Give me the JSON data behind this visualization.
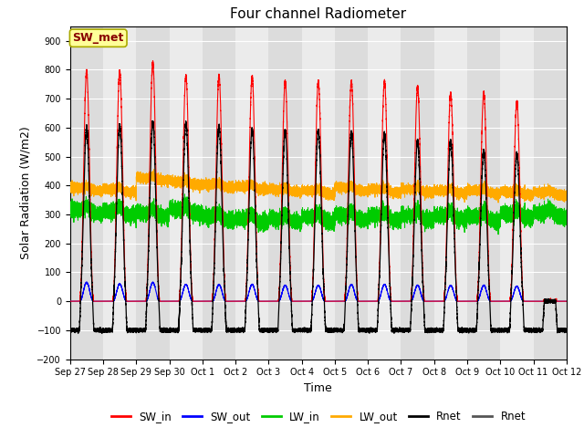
{
  "title": "Four channel Radiometer",
  "xlabel": "Time",
  "ylabel": "Solar Radiation (W/m2)",
  "ylim": [
    -200,
    950
  ],
  "yticks": [
    -200,
    -100,
    0,
    100,
    200,
    300,
    400,
    500,
    600,
    700,
    800,
    900
  ],
  "x_labels": [
    "Sep 27",
    "Sep 28",
    "Sep 29",
    "Sep 30",
    "Oct 1",
    "Oct 2",
    "Oct 3",
    "Oct 4",
    "Oct 5",
    "Oct 6",
    "Oct 7",
    "Oct 8",
    "Oct 9",
    "Oct 10",
    "Oct 11",
    "Oct 12"
  ],
  "num_days": 15,
  "SW_in_peak": [
    795,
    795,
    825,
    780,
    780,
    775,
    760,
    760,
    760,
    760,
    740,
    720,
    720,
    690,
    0
  ],
  "SW_out_peak": [
    65,
    60,
    65,
    58,
    58,
    58,
    55,
    55,
    58,
    58,
    55,
    55,
    55,
    52,
    0
  ],
  "LW_in_base": [
    320,
    315,
    310,
    320,
    295,
    290,
    290,
    295,
    300,
    300,
    300,
    300,
    295,
    305,
    310
  ],
  "LW_out_base": [
    395,
    390,
    430,
    415,
    405,
    400,
    390,
    385,
    395,
    390,
    390,
    385,
    385,
    380,
    380
  ],
  "Rnet_peak": [
    600,
    610,
    620,
    615,
    605,
    595,
    590,
    590,
    585,
    580,
    555,
    555,
    520,
    510,
    0
  ],
  "night_Rnet": -100,
  "colors": {
    "SW_in": "#ff0000",
    "SW_out": "#0000ff",
    "LW_in": "#00cc00",
    "LW_out": "#ffaa00",
    "Rnet1": "#000000",
    "Rnet2": "#555555"
  },
  "bg_color_odd": "#dcdcdc",
  "bg_color_even": "#ebebeb",
  "annotation_text": "SW_met",
  "annotation_facecolor": "#ffff99",
  "annotation_edgecolor": "#aaaa00",
  "legend_labels": [
    "SW_in",
    "SW_out",
    "LW_in",
    "LW_out",
    "Rnet",
    "Rnet"
  ]
}
